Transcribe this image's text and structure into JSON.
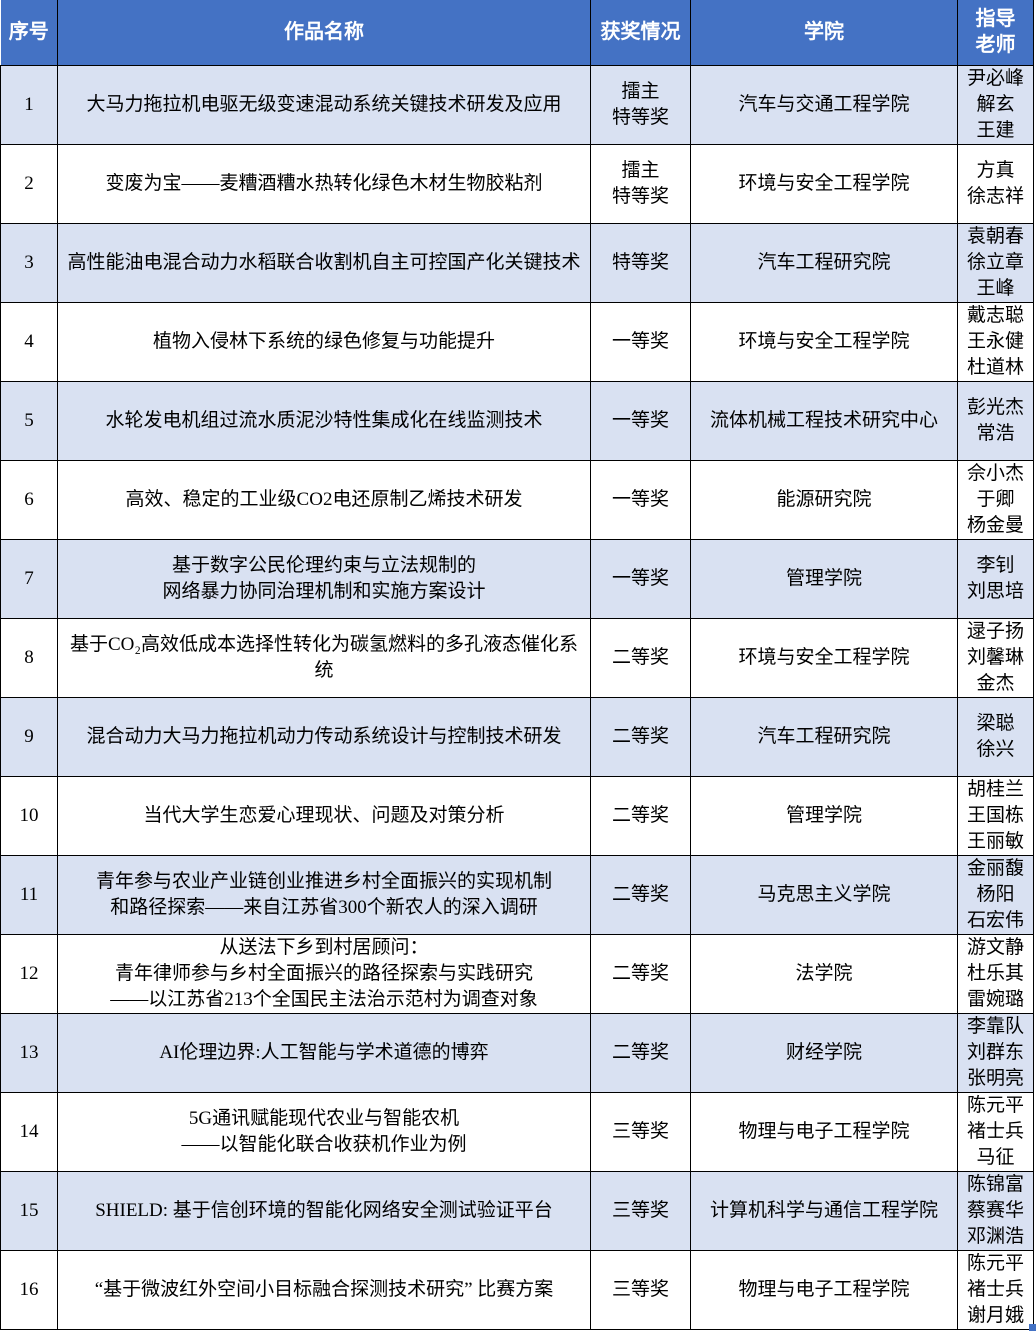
{
  "colors": {
    "header_bg": "#4472C4",
    "band_bg": "#D9E1F2",
    "border": "#000000",
    "header_text": "#FFFFFF",
    "body_text": "#000000",
    "handle": "#4472C4"
  },
  "table": {
    "headers": [
      {
        "id": "no",
        "lines": [
          "序号"
        ]
      },
      {
        "id": "title",
        "lines": [
          "作品名称"
        ]
      },
      {
        "id": "award",
        "lines": [
          "获奖情况"
        ]
      },
      {
        "id": "college",
        "lines": [
          "学院"
        ]
      },
      {
        "id": "teacher",
        "lines": [
          "指导",
          "老师"
        ]
      }
    ],
    "rows": [
      {
        "no": "1",
        "title_lines": [
          "大马力拖拉机电驱无级变速混动系统关键技术研发及应用"
        ],
        "award_lines": [
          "擂主",
          "特等奖"
        ],
        "college": "汽车与交通工程学院",
        "teachers": [
          "尹必峰",
          "解玄",
          "王建"
        ]
      },
      {
        "no": "2",
        "title_lines": [
          "变废为宝——麦糟酒糟水热转化绿色木材生物胶粘剂"
        ],
        "award_lines": [
          "擂主",
          "特等奖"
        ],
        "college": "环境与安全工程学院",
        "teachers": [
          "方真",
          "徐志祥"
        ]
      },
      {
        "no": "3",
        "title_lines": [
          "高性能油电混合动力水稻联合收割机自主可控国产化关键技术"
        ],
        "award_lines": [
          "特等奖"
        ],
        "college": "汽车工程研究院",
        "teachers": [
          "袁朝春",
          "徐立章",
          "王峰"
        ]
      },
      {
        "no": "4",
        "title_lines": [
          "植物入侵林下系统的绿色修复与功能提升"
        ],
        "award_lines": [
          "一等奖"
        ],
        "college": "环境与安全工程学院",
        "teachers": [
          "戴志聪",
          "王永健",
          "杜道林"
        ]
      },
      {
        "no": "5",
        "title_lines": [
          "水轮发电机组过流水质泥沙特性集成化在线监测技术"
        ],
        "award_lines": [
          "一等奖"
        ],
        "college": "流体机械工程技术研究中心",
        "teachers": [
          "彭光杰",
          "常浩"
        ]
      },
      {
        "no": "6",
        "title_lines": [
          "高效、稳定的工业级CO2电还原制乙烯技术研发"
        ],
        "award_lines": [
          "一等奖"
        ],
        "college": "能源研究院",
        "teachers": [
          "佘小杰",
          "于卿",
          "杨金曼"
        ]
      },
      {
        "no": "7",
        "title_lines": [
          "基于数字公民伦理约束与立法规制的",
          "网络暴力协同治理机制和实施方案设计"
        ],
        "award_lines": [
          "一等奖"
        ],
        "college": "管理学院",
        "teachers": [
          "李钊",
          "刘思培"
        ]
      },
      {
        "no": "8",
        "title_lines": [
          "基于CO₂高效低成本选择性转化为碳氢燃料的多孔液态催化系统"
        ],
        "award_lines": [
          "二等奖"
        ],
        "college": "环境与安全工程学院",
        "teachers": [
          "逯子扬",
          "刘馨琳",
          "金杰"
        ]
      },
      {
        "no": "9",
        "title_lines": [
          "混合动力大马力拖拉机动力传动系统设计与控制技术研发"
        ],
        "award_lines": [
          "二等奖"
        ],
        "college": "汽车工程研究院",
        "teachers": [
          "梁聪",
          "徐兴"
        ]
      },
      {
        "no": "10",
        "title_lines": [
          "当代大学生恋爱心理现状、问题及对策分析"
        ],
        "award_lines": [
          "二等奖"
        ],
        "college": "管理学院",
        "teachers": [
          "胡桂兰",
          "王国栋",
          "王丽敏"
        ]
      },
      {
        "no": "11",
        "title_lines": [
          "青年参与农业产业链创业推进乡村全面振兴的实现机制",
          "和路径探索——来自江苏省300个新农人的深入调研"
        ],
        "award_lines": [
          "二等奖"
        ],
        "college": "马克思主义学院",
        "teachers": [
          "金丽馥",
          "杨阳",
          "石宏伟"
        ]
      },
      {
        "no": "12",
        "title_lines": [
          "从送法下乡到村居顾问：",
          "青年律师参与乡村全面振兴的路径探索与实践研究",
          "——以江苏省213个全国民主法治示范村为调查对象"
        ],
        "award_lines": [
          "二等奖"
        ],
        "college": "法学院",
        "teachers": [
          "游文静",
          "杜乐其",
          "雷婉璐"
        ]
      },
      {
        "no": "13",
        "title_lines": [
          "AI伦理边界:人工智能与学术道德的博弈"
        ],
        "award_lines": [
          "二等奖"
        ],
        "college": "财经学院",
        "teachers": [
          "李靠队",
          "刘群东",
          "张明亮"
        ]
      },
      {
        "no": "14",
        "title_lines": [
          "5G通讯赋能现代农业与智能农机",
          "——以智能化联合收获机作业为例"
        ],
        "award_lines": [
          "三等奖"
        ],
        "college": "物理与电子工程学院",
        "teachers": [
          "陈元平",
          "褚士兵",
          "马征"
        ]
      },
      {
        "no": "15",
        "title_lines": [
          "SHIELD: 基于信创环境的智能化网络安全测试验证平台"
        ],
        "award_lines": [
          "三等奖"
        ],
        "college": "计算机科学与通信工程学院",
        "teachers": [
          "陈锦富",
          "蔡赛华",
          "邓渊浩"
        ]
      },
      {
        "no": "16",
        "title_lines": [
          "“基于微波红外空间小目标融合探测技术研究” 比赛方案"
        ],
        "award_lines": [
          "三等奖"
        ],
        "college": "物理与电子工程学院",
        "teachers": [
          "陈元平",
          "褚士兵",
          "谢月娥"
        ]
      }
    ]
  }
}
